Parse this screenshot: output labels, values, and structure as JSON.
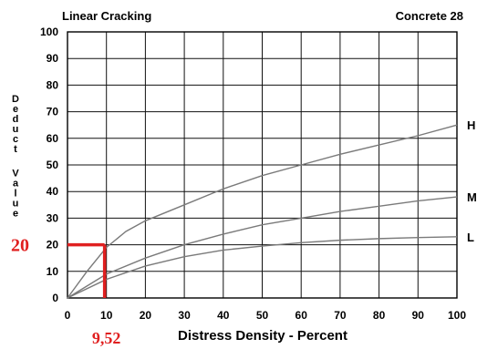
{
  "chart_data": {
    "type": "line",
    "title": "Linear Cracking",
    "subtitle": "Concrete 28",
    "xlabel": "Distress Density - Percent",
    "ylabel": "Deduct Value",
    "xlim": [
      0,
      100
    ],
    "ylim": [
      0,
      100
    ],
    "x_ticks": [
      0,
      10,
      20,
      30,
      40,
      50,
      60,
      70,
      80,
      90,
      100
    ],
    "y_ticks": [
      0,
      10,
      20,
      30,
      40,
      50,
      60,
      70,
      80,
      90,
      100
    ],
    "grid": true,
    "series": [
      {
        "name": "H",
        "x": [
          0,
          5,
          10,
          15,
          20,
          30,
          40,
          50,
          60,
          70,
          80,
          90,
          100
        ],
        "y": [
          0,
          10,
          19,
          25,
          29,
          35,
          41,
          46,
          50,
          54,
          57.5,
          61,
          65
        ]
      },
      {
        "name": "M",
        "x": [
          0,
          10,
          20,
          30,
          40,
          50,
          60,
          70,
          80,
          90,
          100
        ],
        "y": [
          0,
          9,
          15,
          20,
          24,
          27.5,
          30,
          32.5,
          34.5,
          36.5,
          38
        ]
      },
      {
        "name": "L",
        "x": [
          0,
          10,
          20,
          30,
          40,
          50,
          60,
          70,
          80,
          90,
          100
        ],
        "y": [
          0,
          7,
          12,
          15.5,
          18,
          19.5,
          20.8,
          21.7,
          22.3,
          22.7,
          23
        ]
      }
    ],
    "annotation": {
      "x": 9.52,
      "y": 20,
      "x_text": "9,52",
      "y_text": "20",
      "color": "#e02020"
    },
    "colors": {
      "line": "#7a7a7a",
      "grid": "#111111",
      "text": "#000000"
    }
  }
}
